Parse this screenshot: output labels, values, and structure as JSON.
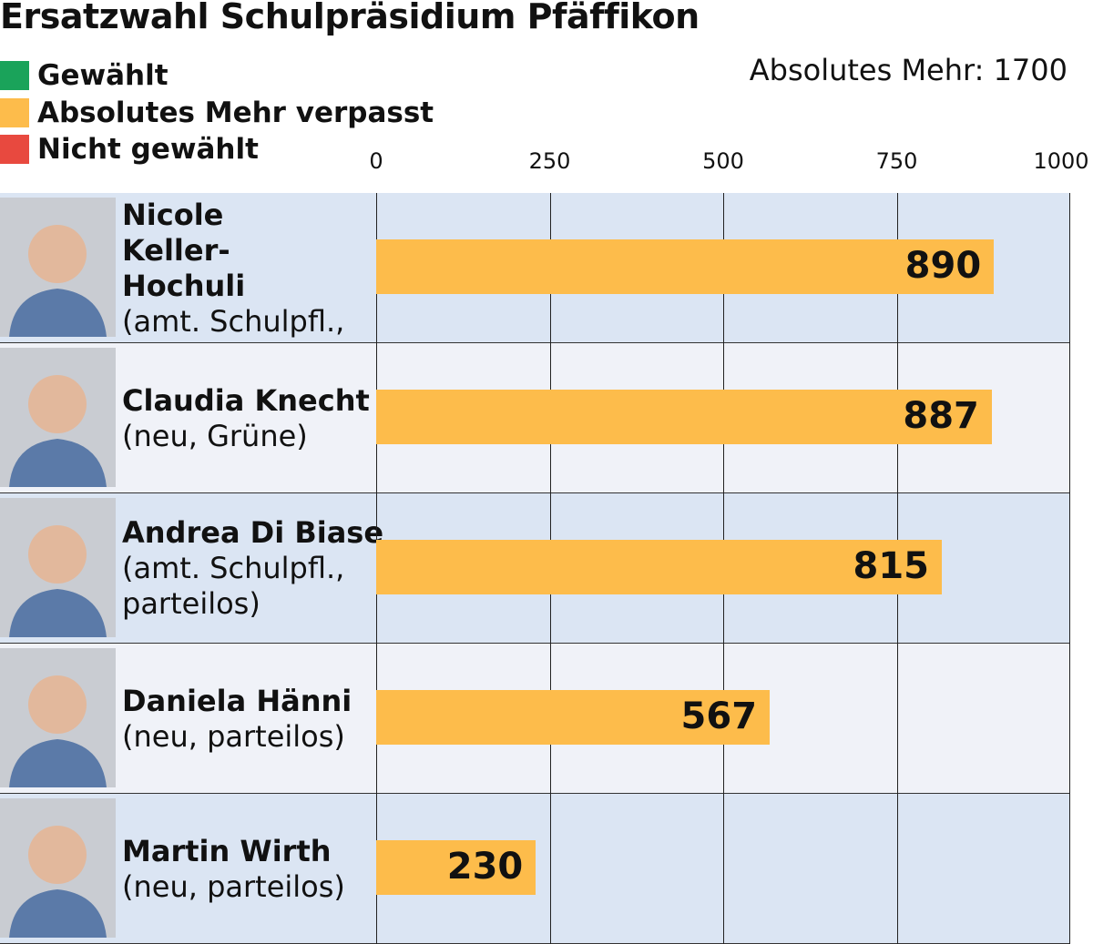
{
  "chart_data": {
    "type": "bar",
    "orientation": "horizontal",
    "title": "Ersatzwahl Schulpräsidium Pfäffikon",
    "annotation": "Absolutes Mehr: 1700",
    "xlim": [
      0,
      1000
    ],
    "ticks": [
      "0",
      "250",
      "500",
      "750",
      "1000"
    ],
    "legend": [
      {
        "label": "Gewählt",
        "color": "#1aa35a"
      },
      {
        "label": "Absolutes Mehr verpasst",
        "color": "#fdbc4b"
      },
      {
        "label": "Nicht gewählt",
        "color": "#e8493f"
      }
    ],
    "candidates": [
      {
        "name": "Nicole Keller-Hochuli",
        "info": "(amt. Schulpfl., FDP)",
        "value": 890,
        "status": "Absolutes Mehr verpasst"
      },
      {
        "name": "Claudia Knecht",
        "info": "(neu, Grüne)",
        "value": 887,
        "status": "Absolutes Mehr verpasst"
      },
      {
        "name": "Andrea Di Biase",
        "info": "(amt. Schulpfl., parteilos)",
        "value": 815,
        "status": "Absolutes Mehr verpasst"
      },
      {
        "name": "Daniela Hänni",
        "info": "(neu, parteilos)",
        "value": 567,
        "status": "Absolutes Mehr verpasst"
      },
      {
        "name": "Martin Wirth",
        "info": "(neu, parteilos)",
        "value": 230,
        "status": "Absolutes Mehr verpasst"
      }
    ],
    "row_colors": [
      "#dbe5f3",
      "#f0f2f8"
    ]
  }
}
